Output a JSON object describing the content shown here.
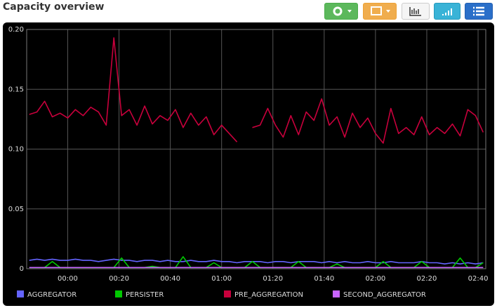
{
  "chart_data": {
    "type": "line",
    "title": "Capacity overview",
    "x": [
      -15,
      -12,
      -9,
      -6,
      -3,
      0,
      3,
      6,
      9,
      12,
      15,
      18,
      21,
      24,
      27,
      30,
      33,
      36,
      39,
      42,
      45,
      48,
      51,
      54,
      57,
      60,
      63,
      66,
      69,
      72,
      75,
      78,
      81,
      84,
      87,
      90,
      93,
      96,
      99,
      102,
      105,
      108,
      111,
      114,
      117,
      120,
      123,
      126,
      129,
      132,
      135,
      138,
      141,
      144,
      147,
      150,
      153,
      156,
      159,
      162
    ],
    "xlim": [
      -16,
      163
    ],
    "xticks": [
      {
        "value": 0,
        "label": "00:00"
      },
      {
        "value": 20,
        "label": "00:20"
      },
      {
        "value": 40,
        "label": "00:40"
      },
      {
        "value": 60,
        "label": "01:00"
      },
      {
        "value": 80,
        "label": "01:20"
      },
      {
        "value": 100,
        "label": "01:40"
      },
      {
        "value": 120,
        "label": "02:00"
      },
      {
        "value": 140,
        "label": "02:20"
      },
      {
        "value": 160,
        "label": "02:40"
      }
    ],
    "ylim": [
      0,
      0.2
    ],
    "yticks": [
      0,
      0.05,
      {
        "value": 0.1,
        "label": "0.10"
      },
      0.15,
      {
        "value": 0.2,
        "label": "0.20"
      }
    ],
    "grid": true,
    "series": [
      {
        "name": "AGGREGATOR",
        "color": "#6464ff",
        "values": [
          0.007,
          0.008,
          0.007,
          0.008,
          0.007,
          0.007,
          0.008,
          0.007,
          0.007,
          0.006,
          0.007,
          0.008,
          0.007,
          0.007,
          0.006,
          0.007,
          0.007,
          0.006,
          0.007,
          0.006,
          0.006,
          0.007,
          0.006,
          0.006,
          0.007,
          0.006,
          0.006,
          0.005,
          0.006,
          0.006,
          0.006,
          0.005,
          0.006,
          0.006,
          0.005,
          0.006,
          0.006,
          0.006,
          0.005,
          0.006,
          0.005,
          0.006,
          0.005,
          0.005,
          0.006,
          0.005,
          0.005,
          0.006,
          0.005,
          0.005,
          0.005,
          0.006,
          0.005,
          0.005,
          0.004,
          0.005,
          0.004,
          0.005,
          0.004,
          0.005
        ]
      },
      {
        "name": "PERSISTER",
        "color": "#00c800",
        "values": [
          0.001,
          0.001,
          0.001,
          0.006,
          0.001,
          0.001,
          0.001,
          0.001,
          0.001,
          0.001,
          0.001,
          0.001,
          0.009,
          0.001,
          0.001,
          0.001,
          0.002,
          0.001,
          0.001,
          0.001,
          0.01,
          0.001,
          0.001,
          0.001,
          0.005,
          0.001,
          0.001,
          0.001,
          0.001,
          0.006,
          0.001,
          0.001,
          0.001,
          0.001,
          0.001,
          0.006,
          0.001,
          0.001,
          0.001,
          0.001,
          0.004,
          0.001,
          0.001,
          0.001,
          0.001,
          0.001,
          0.006,
          0.001,
          0.001,
          0.001,
          0.001,
          0.006,
          0.001,
          0.001,
          0.001,
          0.001,
          0.009,
          0.001,
          0.001,
          0.005
        ]
      },
      {
        "name": "PRE_AGGREGATION",
        "color": "#c8003c",
        "values": [
          0.129,
          0.131,
          0.14,
          0.127,
          0.13,
          0.126,
          0.133,
          0.128,
          0.135,
          0.131,
          0.12,
          0.193,
          0.128,
          0.133,
          0.12,
          0.136,
          0.121,
          0.128,
          0.124,
          0.133,
          0.118,
          0.13,
          0.12,
          0.127,
          0.112,
          0.12,
          0.113,
          0.106,
          null,
          0.118,
          0.12,
          0.134,
          0.12,
          0.11,
          0.128,
          0.112,
          0.131,
          0.124,
          0.142,
          0.12,
          0.127,
          0.11,
          0.13,
          0.118,
          0.126,
          0.113,
          0.105,
          0.134,
          0.113,
          0.118,
          0.112,
          0.127,
          0.112,
          0.118,
          0.113,
          0.121,
          0.111,
          0.133,
          0.128,
          0.114
        ]
      },
      {
        "name": "SECOND_AGGREGATOR",
        "color": "#c864ff",
        "values": [
          0.001,
          0.001,
          0.001,
          0.001,
          0.001,
          0.001,
          0.001,
          0.001,
          0.001,
          0.001,
          0.001,
          0.001,
          0.001,
          0.001,
          0.001,
          0.001,
          0.001,
          0.001,
          0.001,
          0.001,
          0.001,
          0.001,
          0.001,
          0.001,
          0.001,
          0.001,
          0.001,
          0.001,
          0.001,
          0.001,
          0.001,
          0.001,
          0.001,
          0.001,
          0.001,
          0.001,
          0.001,
          0.001,
          0.001,
          0.001,
          0.001,
          0.001,
          0.001,
          0.001,
          0.001,
          0.001,
          0.001,
          0.001,
          0.001,
          0.001,
          0.001,
          0.001,
          0.001,
          0.001,
          0.001,
          0.001,
          0.001,
          0.001,
          0.001,
          0.001
        ]
      }
    ]
  }
}
